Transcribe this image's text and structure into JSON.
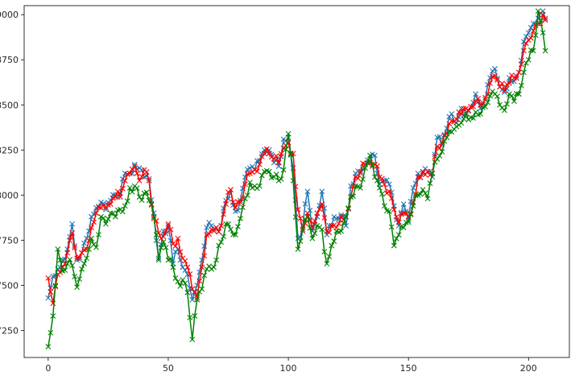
{
  "chart_data": {
    "type": "line",
    "marker": "x",
    "title": "",
    "xlabel": "",
    "ylabel": "",
    "xlim": [
      -10,
      217
    ],
    "ylim": [
      7100,
      9050
    ],
    "grid": false,
    "x_ticks": [
      0,
      50,
      100,
      150,
      200
    ],
    "x_tick_labels": [
      "0",
      "50",
      "100",
      "150",
      "200"
    ],
    "y_ticks": [
      7250,
      7500,
      7750,
      8000,
      8250,
      8500,
      8750,
      9000
    ],
    "y_tick_labels": [
      "7250",
      "7500",
      "7750",
      "8000",
      "8250",
      "8500",
      "8750",
      "9000"
    ],
    "series": [
      {
        "color": "#1f77b4",
        "anchors": [
          [
            0,
            7430
          ],
          [
            2,
            7550
          ],
          [
            4,
            7590
          ],
          [
            6,
            7640
          ],
          [
            8,
            7700
          ],
          [
            10,
            7840
          ],
          [
            12,
            7640
          ],
          [
            14,
            7680
          ],
          [
            16,
            7760
          ],
          [
            18,
            7880
          ],
          [
            20,
            7930
          ],
          [
            22,
            7960
          ],
          [
            24,
            7920
          ],
          [
            26,
            7970
          ],
          [
            28,
            8000
          ],
          [
            30,
            8010
          ],
          [
            32,
            8120
          ],
          [
            34,
            8120
          ],
          [
            36,
            8170
          ],
          [
            38,
            8150
          ],
          [
            40,
            8100
          ],
          [
            42,
            8090
          ],
          [
            44,
            7900
          ],
          [
            46,
            7650
          ],
          [
            48,
            7800
          ],
          [
            50,
            7830
          ],
          [
            52,
            7620
          ],
          [
            54,
            7700
          ],
          [
            56,
            7600
          ],
          [
            58,
            7560
          ],
          [
            60,
            7420
          ],
          [
            62,
            7500
          ],
          [
            64,
            7640
          ],
          [
            66,
            7820
          ],
          [
            68,
            7830
          ],
          [
            70,
            7820
          ],
          [
            72,
            7830
          ],
          [
            74,
            7970
          ],
          [
            76,
            8030
          ],
          [
            78,
            7910
          ],
          [
            80,
            7970
          ],
          [
            82,
            8100
          ],
          [
            84,
            8150
          ],
          [
            86,
            8140
          ],
          [
            88,
            8190
          ],
          [
            90,
            8250
          ],
          [
            92,
            8250
          ],
          [
            94,
            8180
          ],
          [
            96,
            8160
          ],
          [
            98,
            8310
          ],
          [
            100,
            8320
          ],
          [
            102,
            8150
          ],
          [
            104,
            7760
          ],
          [
            106,
            7830
          ],
          [
            108,
            8020
          ],
          [
            110,
            7800
          ],
          [
            112,
            7880
          ],
          [
            114,
            8020
          ],
          [
            116,
            7780
          ],
          [
            118,
            7830
          ],
          [
            120,
            7870
          ],
          [
            122,
            7890
          ],
          [
            124,
            7830
          ],
          [
            126,
            8050
          ],
          [
            128,
            8120
          ],
          [
            130,
            8120
          ],
          [
            132,
            8170
          ],
          [
            134,
            8190
          ],
          [
            136,
            8220
          ],
          [
            138,
            8060
          ],
          [
            140,
            8080
          ],
          [
            142,
            8060
          ],
          [
            144,
            7940
          ],
          [
            146,
            7830
          ],
          [
            148,
            7950
          ],
          [
            150,
            7860
          ],
          [
            152,
            8040
          ],
          [
            154,
            8120
          ],
          [
            156,
            8120
          ],
          [
            158,
            8130
          ],
          [
            160,
            8100
          ],
          [
            162,
            8320
          ],
          [
            164,
            8280
          ],
          [
            166,
            8370
          ],
          [
            168,
            8450
          ],
          [
            170,
            8400
          ],
          [
            172,
            8480
          ],
          [
            174,
            8460
          ],
          [
            176,
            8490
          ],
          [
            178,
            8560
          ],
          [
            180,
            8480
          ],
          [
            182,
            8530
          ],
          [
            184,
            8650
          ],
          [
            186,
            8700
          ],
          [
            188,
            8600
          ],
          [
            190,
            8570
          ],
          [
            192,
            8650
          ],
          [
            194,
            8630
          ],
          [
            196,
            8680
          ],
          [
            198,
            8850
          ],
          [
            200,
            8900
          ],
          [
            202,
            8950
          ],
          [
            204,
            8980
          ],
          [
            206,
            9020
          ],
          [
            207,
            8980
          ]
        ]
      },
      {
        "color": "#ff0000",
        "anchors": [
          [
            0,
            7540
          ],
          [
            2,
            7400
          ],
          [
            4,
            7560
          ],
          [
            6,
            7600
          ],
          [
            8,
            7680
          ],
          [
            10,
            7790
          ],
          [
            12,
            7650
          ],
          [
            14,
            7680
          ],
          [
            16,
            7700
          ],
          [
            18,
            7820
          ],
          [
            20,
            7900
          ],
          [
            22,
            7930
          ],
          [
            24,
            7930
          ],
          [
            26,
            7950
          ],
          [
            28,
            7990
          ],
          [
            30,
            7990
          ],
          [
            32,
            8080
          ],
          [
            34,
            8120
          ],
          [
            36,
            8160
          ],
          [
            38,
            8080
          ],
          [
            40,
            8140
          ],
          [
            42,
            8080
          ],
          [
            44,
            7870
          ],
          [
            46,
            7790
          ],
          [
            48,
            7770
          ],
          [
            50,
            7840
          ],
          [
            52,
            7730
          ],
          [
            54,
            7760
          ],
          [
            56,
            7650
          ],
          [
            58,
            7600
          ],
          [
            60,
            7480
          ],
          [
            62,
            7430
          ],
          [
            64,
            7600
          ],
          [
            66,
            7780
          ],
          [
            68,
            7810
          ],
          [
            70,
            7820
          ],
          [
            72,
            7830
          ],
          [
            74,
            7950
          ],
          [
            76,
            8030
          ],
          [
            78,
            7930
          ],
          [
            80,
            7960
          ],
          [
            82,
            8060
          ],
          [
            84,
            8120
          ],
          [
            86,
            8140
          ],
          [
            88,
            8170
          ],
          [
            90,
            8230
          ],
          [
            92,
            8230
          ],
          [
            94,
            8200
          ],
          [
            96,
            8180
          ],
          [
            98,
            8260
          ],
          [
            100,
            8290
          ],
          [
            102,
            8230
          ],
          [
            104,
            7920
          ],
          [
            106,
            7800
          ],
          [
            108,
            7900
          ],
          [
            110,
            7820
          ],
          [
            112,
            7900
          ],
          [
            114,
            7950
          ],
          [
            116,
            7800
          ],
          [
            118,
            7830
          ],
          [
            120,
            7820
          ],
          [
            122,
            7880
          ],
          [
            124,
            7880
          ],
          [
            126,
            7990
          ],
          [
            128,
            8100
          ],
          [
            130,
            8130
          ],
          [
            132,
            8170
          ],
          [
            134,
            8180
          ],
          [
            136,
            8170
          ],
          [
            138,
            8100
          ],
          [
            140,
            8060
          ],
          [
            142,
            8020
          ],
          [
            144,
            7920
          ],
          [
            146,
            7850
          ],
          [
            148,
            7900
          ],
          [
            150,
            7880
          ],
          [
            152,
            7960
          ],
          [
            154,
            8100
          ],
          [
            156,
            8130
          ],
          [
            158,
            8130
          ],
          [
            160,
            8120
          ],
          [
            162,
            8270
          ],
          [
            164,
            8290
          ],
          [
            166,
            8340
          ],
          [
            168,
            8410
          ],
          [
            170,
            8420
          ],
          [
            172,
            8450
          ],
          [
            174,
            8480
          ],
          [
            176,
            8490
          ],
          [
            178,
            8520
          ],
          [
            180,
            8500
          ],
          [
            182,
            8540
          ],
          [
            184,
            8620
          ],
          [
            186,
            8660
          ],
          [
            188,
            8600
          ],
          [
            190,
            8580
          ],
          [
            192,
            8620
          ],
          [
            194,
            8650
          ],
          [
            196,
            8680
          ],
          [
            198,
            8800
          ],
          [
            200,
            8860
          ],
          [
            202,
            8910
          ],
          [
            204,
            8950
          ],
          [
            206,
            9000
          ],
          [
            207,
            8970
          ]
        ]
      },
      {
        "color": "#008000",
        "anchors": [
          [
            0,
            7160
          ],
          [
            2,
            7330
          ],
          [
            4,
            7700
          ],
          [
            6,
            7580
          ],
          [
            8,
            7620
          ],
          [
            10,
            7610
          ],
          [
            12,
            7490
          ],
          [
            14,
            7590
          ],
          [
            16,
            7650
          ],
          [
            18,
            7760
          ],
          [
            20,
            7710
          ],
          [
            22,
            7880
          ],
          [
            24,
            7840
          ],
          [
            26,
            7900
          ],
          [
            28,
            7880
          ],
          [
            30,
            7920
          ],
          [
            32,
            7940
          ],
          [
            34,
            8040
          ],
          [
            36,
            8050
          ],
          [
            38,
            7990
          ],
          [
            40,
            8010
          ],
          [
            42,
            7970
          ],
          [
            44,
            7880
          ],
          [
            46,
            7640
          ],
          [
            48,
            7740
          ],
          [
            50,
            7640
          ],
          [
            52,
            7600
          ],
          [
            54,
            7520
          ],
          [
            56,
            7530
          ],
          [
            58,
            7460
          ],
          [
            60,
            7200
          ],
          [
            62,
            7420
          ],
          [
            64,
            7480
          ],
          [
            66,
            7590
          ],
          [
            68,
            7590
          ],
          [
            70,
            7640
          ],
          [
            72,
            7740
          ],
          [
            74,
            7840
          ],
          [
            76,
            7810
          ],
          [
            78,
            7780
          ],
          [
            80,
            7870
          ],
          [
            82,
            7980
          ],
          [
            84,
            8070
          ],
          [
            86,
            8050
          ],
          [
            88,
            8050
          ],
          [
            90,
            8130
          ],
          [
            92,
            8130
          ],
          [
            94,
            8100
          ],
          [
            96,
            8080
          ],
          [
            98,
            8140
          ],
          [
            100,
            8340
          ],
          [
            102,
            8080
          ],
          [
            104,
            7700
          ],
          [
            106,
            7810
          ],
          [
            108,
            7880
          ],
          [
            110,
            7760
          ],
          [
            112,
            7830
          ],
          [
            114,
            7810
          ],
          [
            116,
            7620
          ],
          [
            118,
            7720
          ],
          [
            120,
            7800
          ],
          [
            122,
            7800
          ],
          [
            124,
            7880
          ],
          [
            126,
            7990
          ],
          [
            128,
            8050
          ],
          [
            130,
            8040
          ],
          [
            132,
            8150
          ],
          [
            134,
            8220
          ],
          [
            136,
            8100
          ],
          [
            138,
            8040
          ],
          [
            140,
            7940
          ],
          [
            142,
            7910
          ],
          [
            144,
            7720
          ],
          [
            146,
            7780
          ],
          [
            148,
            7820
          ],
          [
            150,
            7850
          ],
          [
            152,
            7940
          ],
          [
            154,
            8000
          ],
          [
            156,
            8030
          ],
          [
            158,
            7980
          ],
          [
            160,
            8120
          ],
          [
            162,
            8200
          ],
          [
            164,
            8240
          ],
          [
            166,
            8320
          ],
          [
            168,
            8350
          ],
          [
            170,
            8380
          ],
          [
            172,
            8400
          ],
          [
            174,
            8450
          ],
          [
            176,
            8430
          ],
          [
            178,
            8460
          ],
          [
            180,
            8450
          ],
          [
            182,
            8490
          ],
          [
            184,
            8550
          ],
          [
            186,
            8560
          ],
          [
            188,
            8500
          ],
          [
            190,
            8470
          ],
          [
            192,
            8560
          ],
          [
            194,
            8520
          ],
          [
            196,
            8560
          ],
          [
            198,
            8680
          ],
          [
            200,
            8750
          ],
          [
            202,
            8800
          ],
          [
            204,
            9020
          ],
          [
            206,
            8900
          ],
          [
            207,
            8800
          ]
        ]
      }
    ]
  }
}
